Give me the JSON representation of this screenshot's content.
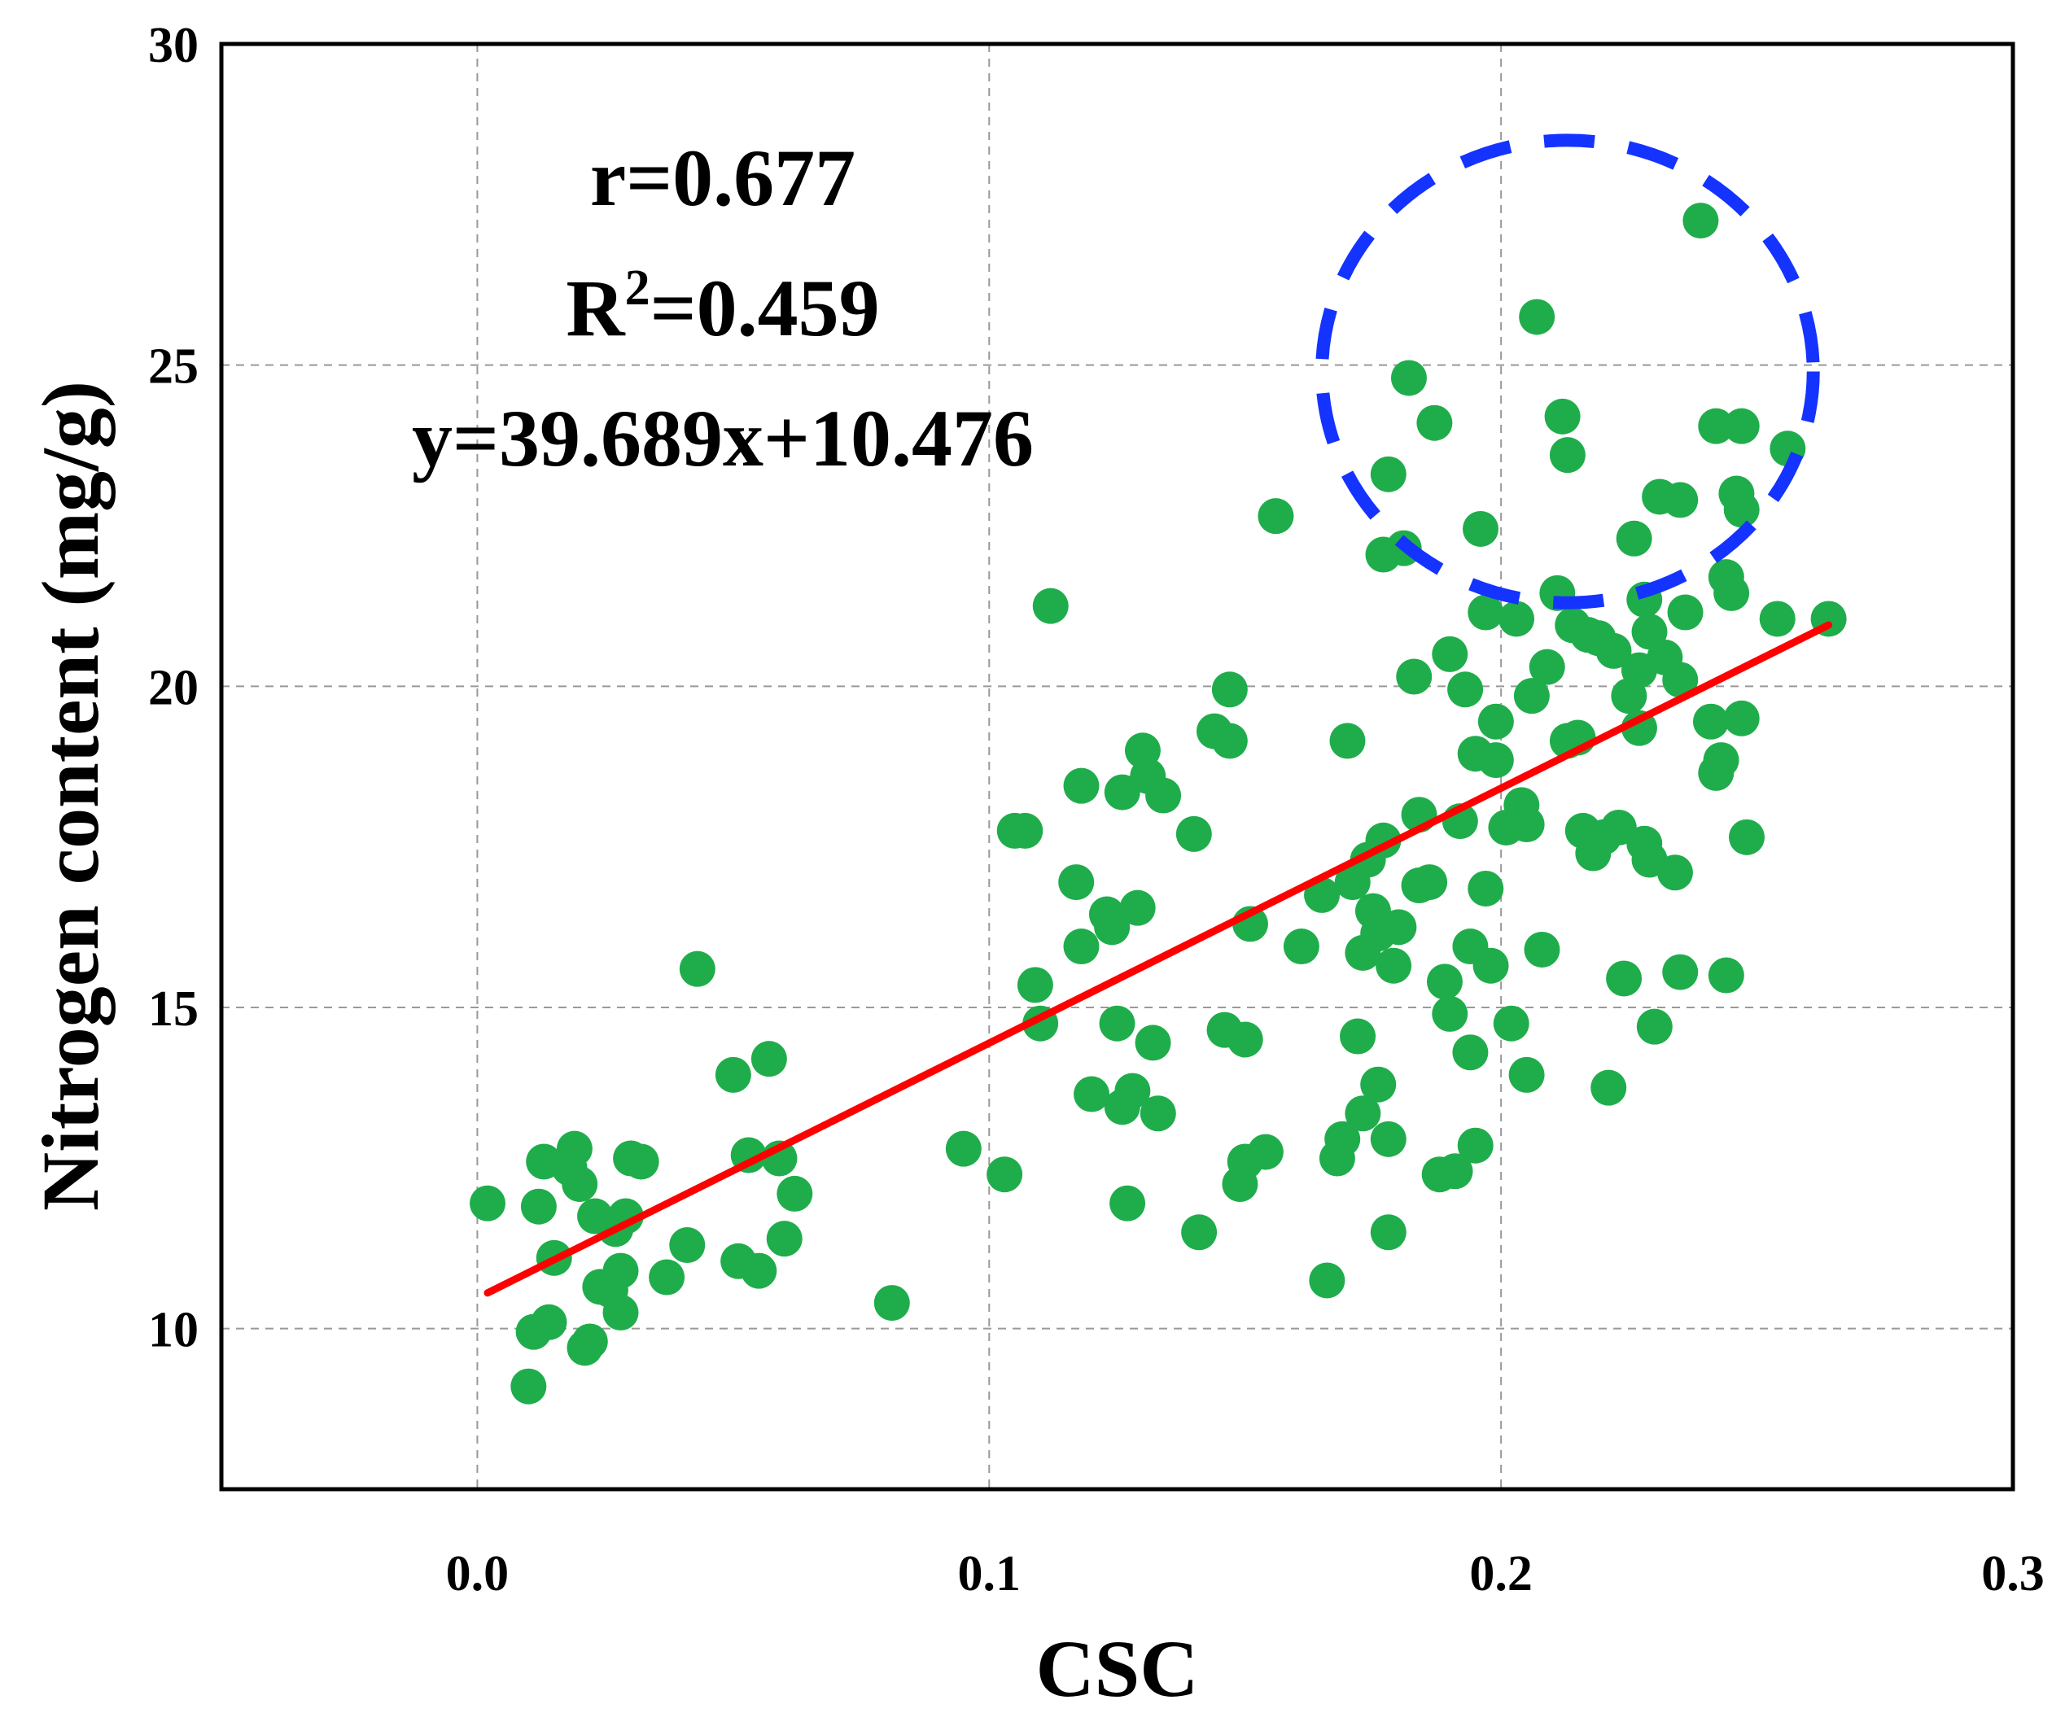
{
  "chart_data": {
    "type": "scatter",
    "xlabel": "CSC",
    "ylabel": "Nitrogen content (mg/g)",
    "xlim": [
      -0.05,
      0.3
    ],
    "ylim": [
      7.5,
      30
    ],
    "x_ticks": [
      "0.0",
      "0.1",
      "0.2",
      "0.3"
    ],
    "y_ticks": [
      "10",
      "15",
      "20",
      "25",
      "30"
    ],
    "grid": true,
    "annotations": {
      "r_text": "r=0.677",
      "r2_prefix": "R",
      "r2_sup": "2",
      "r2_value": "=0.459",
      "equation": "y=39.689x+10.476"
    },
    "fit_line": {
      "slope": 39.689,
      "intercept": 10.476,
      "x_range": [
        0.002,
        0.264
      ]
    },
    "highlight_circle": {
      "center": [
        0.213,
        24.9
      ],
      "radius_x": 0.048,
      "radius_y": 3.6
    },
    "colors": {
      "points": "#1fad4b",
      "fit_line": "#ff0000",
      "highlight": "#1433ff",
      "frame": "#000000"
    },
    "points": [
      [
        0.002,
        11.95
      ],
      [
        0.01,
        9.1
      ],
      [
        0.011,
        9.95
      ],
      [
        0.012,
        11.9
      ],
      [
        0.013,
        12.6
      ],
      [
        0.014,
        10.1
      ],
      [
        0.015,
        11.1
      ],
      [
        0.018,
        12.5
      ],
      [
        0.019,
        12.8
      ],
      [
        0.02,
        12.25
      ],
      [
        0.021,
        9.7
      ],
      [
        0.022,
        9.8
      ],
      [
        0.023,
        11.75
      ],
      [
        0.024,
        10.65
      ],
      [
        0.026,
        10.6
      ],
      [
        0.027,
        11.55
      ],
      [
        0.028,
        10.9
      ],
      [
        0.028,
        10.25
      ],
      [
        0.029,
        11.75
      ],
      [
        0.03,
        12.65
      ],
      [
        0.032,
        12.6
      ],
      [
        0.037,
        10.8
      ],
      [
        0.041,
        11.3
      ],
      [
        0.043,
        15.6
      ],
      [
        0.05,
        13.95
      ],
      [
        0.051,
        11.05
      ],
      [
        0.053,
        12.7
      ],
      [
        0.055,
        10.9
      ],
      [
        0.057,
        14.2
      ],
      [
        0.059,
        12.65
      ],
      [
        0.06,
        11.4
      ],
      [
        0.062,
        12.1
      ],
      [
        0.081,
        10.4
      ],
      [
        0.095,
        12.8
      ],
      [
        0.103,
        12.4
      ],
      [
        0.105,
        17.75
      ],
      [
        0.107,
        17.75
      ],
      [
        0.109,
        15.35
      ],
      [
        0.11,
        14.75
      ],
      [
        0.112,
        21.25
      ],
      [
        0.117,
        16.95
      ],
      [
        0.118,
        18.45
      ],
      [
        0.118,
        15.95
      ],
      [
        0.12,
        13.65
      ],
      [
        0.123,
        16.45
      ],
      [
        0.124,
        16.25
      ],
      [
        0.125,
        14.75
      ],
      [
        0.126,
        18.35
      ],
      [
        0.126,
        13.45
      ],
      [
        0.127,
        11.95
      ],
      [
        0.128,
        13.7
      ],
      [
        0.129,
        16.55
      ],
      [
        0.13,
        19.0
      ],
      [
        0.131,
        18.6
      ],
      [
        0.132,
        14.45
      ],
      [
        0.133,
        13.35
      ],
      [
        0.134,
        18.3
      ],
      [
        0.14,
        17.7
      ],
      [
        0.141,
        11.5
      ],
      [
        0.144,
        19.3
      ],
      [
        0.146,
        14.65
      ],
      [
        0.147,
        19.95
      ],
      [
        0.147,
        19.15
      ],
      [
        0.149,
        12.25
      ],
      [
        0.15,
        12.6
      ],
      [
        0.15,
        14.5
      ],
      [
        0.151,
        16.3
      ],
      [
        0.154,
        12.75
      ],
      [
        0.156,
        22.65
      ],
      [
        0.161,
        15.95
      ],
      [
        0.165,
        16.75
      ],
      [
        0.166,
        10.75
      ],
      [
        0.168,
        12.65
      ],
      [
        0.169,
        12.95
      ],
      [
        0.17,
        19.15
      ],
      [
        0.171,
        16.95
      ],
      [
        0.172,
        14.55
      ],
      [
        0.173,
        15.85
      ],
      [
        0.173,
        13.35
      ],
      [
        0.174,
        17.3
      ],
      [
        0.175,
        16.5
      ],
      [
        0.176,
        16.15
      ],
      [
        0.176,
        13.8
      ],
      [
        0.177,
        22.05
      ],
      [
        0.177,
        17.6
      ],
      [
        0.178,
        23.3
      ],
      [
        0.178,
        12.95
      ],
      [
        0.178,
        11.5
      ],
      [
        0.179,
        15.65
      ],
      [
        0.18,
        16.25
      ],
      [
        0.181,
        22.15
      ],
      [
        0.182,
        24.8
      ],
      [
        0.183,
        20.15
      ],
      [
        0.184,
        16.9
      ],
      [
        0.184,
        18.0
      ],
      [
        0.186,
        16.95
      ],
      [
        0.187,
        24.1
      ],
      [
        0.188,
        12.4
      ],
      [
        0.189,
        15.4
      ],
      [
        0.19,
        20.5
      ],
      [
        0.19,
        14.9
      ],
      [
        0.191,
        12.45
      ],
      [
        0.192,
        17.9
      ],
      [
        0.193,
        19.95
      ],
      [
        0.194,
        14.3
      ],
      [
        0.194,
        15.95
      ],
      [
        0.195,
        12.85
      ],
      [
        0.195,
        18.95
      ],
      [
        0.196,
        22.45
      ],
      [
        0.197,
        21.15
      ],
      [
        0.197,
        16.85
      ],
      [
        0.198,
        15.65
      ],
      [
        0.199,
        19.45
      ],
      [
        0.199,
        18.85
      ],
      [
        0.201,
        17.8
      ],
      [
        0.202,
        14.75
      ],
      [
        0.203,
        21.05
      ],
      [
        0.204,
        18.15
      ],
      [
        0.205,
        17.85
      ],
      [
        0.205,
        13.95
      ],
      [
        0.206,
        19.85
      ],
      [
        0.207,
        25.75
      ],
      [
        0.208,
        15.9
      ],
      [
        0.209,
        20.3
      ],
      [
        0.211,
        21.45
      ],
      [
        0.212,
        24.2
      ],
      [
        0.213,
        23.6
      ],
      [
        0.213,
        19.15
      ],
      [
        0.214,
        20.95
      ],
      [
        0.215,
        19.2
      ],
      [
        0.216,
        17.75
      ],
      [
        0.217,
        20.8
      ],
      [
        0.218,
        17.4
      ],
      [
        0.219,
        20.75
      ],
      [
        0.22,
        17.65
      ],
      [
        0.221,
        13.75
      ],
      [
        0.222,
        20.55
      ],
      [
        0.223,
        17.8
      ],
      [
        0.224,
        15.45
      ],
      [
        0.225,
        19.85
      ],
      [
        0.226,
        22.3
      ],
      [
        0.227,
        19.35
      ],
      [
        0.227,
        20.25
      ],
      [
        0.228,
        17.55
      ],
      [
        0.228,
        21.35
      ],
      [
        0.229,
        20.85
      ],
      [
        0.229,
        17.3
      ],
      [
        0.23,
        14.7
      ],
      [
        0.231,
        22.95
      ],
      [
        0.232,
        20.45
      ],
      [
        0.234,
        17.1
      ],
      [
        0.235,
        22.9
      ],
      [
        0.235,
        20.1
      ],
      [
        0.235,
        15.55
      ],
      [
        0.236,
        21.15
      ],
      [
        0.239,
        27.25
      ],
      [
        0.241,
        19.45
      ],
      [
        0.242,
        24.05
      ],
      [
        0.242,
        18.65
      ],
      [
        0.243,
        18.85
      ],
      [
        0.244,
        21.7
      ],
      [
        0.244,
        15.5
      ],
      [
        0.245,
        21.45
      ],
      [
        0.246,
        23.0
      ],
      [
        0.247,
        22.75
      ],
      [
        0.247,
        24.05
      ],
      [
        0.247,
        19.5
      ],
      [
        0.248,
        17.65
      ],
      [
        0.254,
        21.05
      ],
      [
        0.256,
        23.7
      ],
      [
        0.264,
        21.05
      ]
    ]
  }
}
